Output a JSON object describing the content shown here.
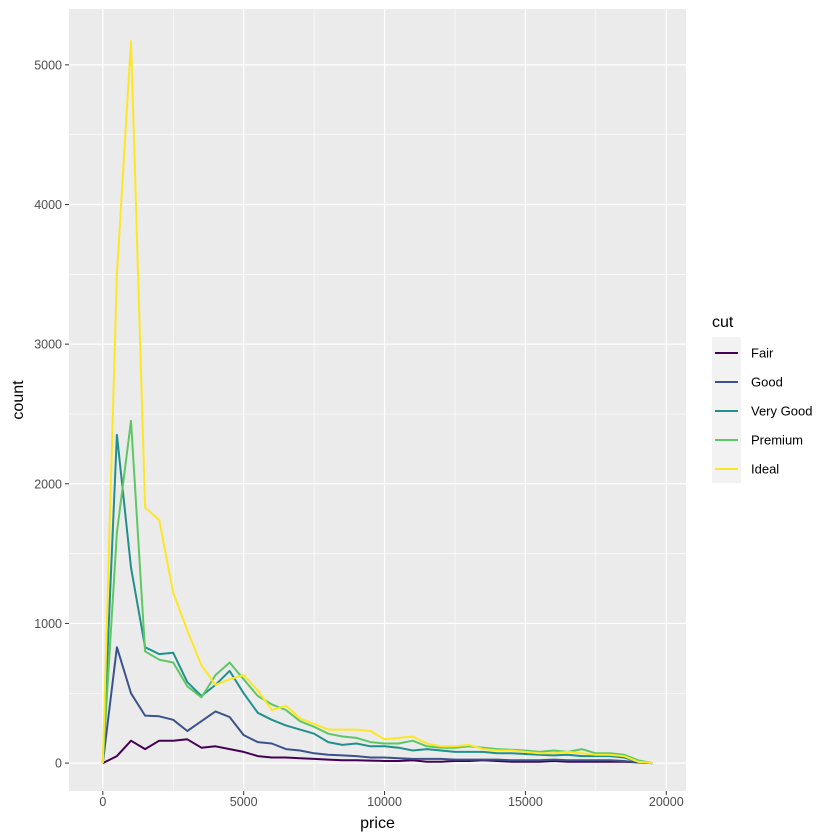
{
  "chart_data": {
    "type": "line",
    "title": "",
    "xlabel": "price",
    "ylabel": "count",
    "xlim": [
      -1200,
      20700
    ],
    "ylim": [
      -200,
      5400
    ],
    "x_ticks": [
      0,
      5000,
      10000,
      15000,
      20000
    ],
    "x_tick_labels": [
      "0",
      "5000",
      "10000",
      "15000",
      "20000"
    ],
    "y_ticks": [
      0,
      1000,
      2000,
      3000,
      4000,
      5000
    ],
    "y_tick_labels": [
      "0",
      "1000",
      "2000",
      "3000",
      "4000",
      "5000"
    ],
    "grid": true,
    "background_color": "#ebebeb",
    "grid_color": "#ffffff",
    "legend": {
      "title": "cut",
      "position": "right"
    },
    "x": [
      0,
      500,
      1000,
      1500,
      2000,
      2500,
      3000,
      3500,
      4000,
      4500,
      5000,
      5500,
      6000,
      6500,
      7000,
      7500,
      8000,
      8500,
      9000,
      9500,
      10000,
      10500,
      11000,
      11500,
      12000,
      12500,
      13000,
      13500,
      14000,
      14500,
      15000,
      15500,
      16000,
      16500,
      17000,
      17500,
      18000,
      18500,
      19000,
      19500
    ],
    "series": [
      {
        "name": "Fair",
        "color": "#440154",
        "values": [
          0,
          50,
          160,
          100,
          160,
          160,
          170,
          110,
          120,
          100,
          80,
          50,
          40,
          40,
          35,
          30,
          25,
          20,
          20,
          18,
          15,
          15,
          20,
          10,
          10,
          15,
          15,
          20,
          15,
          10,
          10,
          10,
          15,
          10,
          10,
          10,
          10,
          10,
          5,
          0
        ]
      },
      {
        "name": "Good",
        "color": "#3b528b",
        "values": [
          0,
          830,
          500,
          340,
          335,
          310,
          230,
          300,
          370,
          330,
          200,
          150,
          140,
          100,
          90,
          70,
          60,
          55,
          50,
          40,
          40,
          35,
          30,
          30,
          30,
          25,
          25,
          25,
          25,
          20,
          20,
          20,
          25,
          20,
          20,
          20,
          20,
          15,
          5,
          0
        ]
      },
      {
        "name": "Very Good",
        "color": "#21908c",
        "values": [
          0,
          2350,
          1400,
          830,
          780,
          790,
          580,
          480,
          560,
          660,
          500,
          360,
          310,
          270,
          240,
          210,
          150,
          130,
          140,
          120,
          120,
          110,
          90,
          100,
          90,
          80,
          80,
          80,
          70,
          70,
          65,
          60,
          55,
          60,
          50,
          50,
          50,
          40,
          10,
          0
        ]
      },
      {
        "name": "Premium",
        "color": "#5dc863",
        "values": [
          0,
          1650,
          2450,
          800,
          740,
          720,
          550,
          470,
          630,
          720,
          600,
          480,
          420,
          380,
          300,
          260,
          210,
          190,
          180,
          150,
          140,
          140,
          160,
          120,
          110,
          110,
          120,
          110,
          100,
          95,
          90,
          80,
          90,
          80,
          100,
          70,
          70,
          60,
          20,
          0
        ]
      },
      {
        "name": "Ideal",
        "color": "#fde725",
        "values": [
          0,
          3500,
          5170,
          1830,
          1740,
          1220,
          950,
          700,
          560,
          600,
          630,
          520,
          380,
          410,
          320,
          280,
          240,
          240,
          240,
          230,
          170,
          180,
          190,
          140,
          120,
          120,
          130,
          100,
          90,
          90,
          80,
          70,
          70,
          80,
          70,
          60,
          60,
          50,
          10,
          0
        ]
      }
    ]
  }
}
